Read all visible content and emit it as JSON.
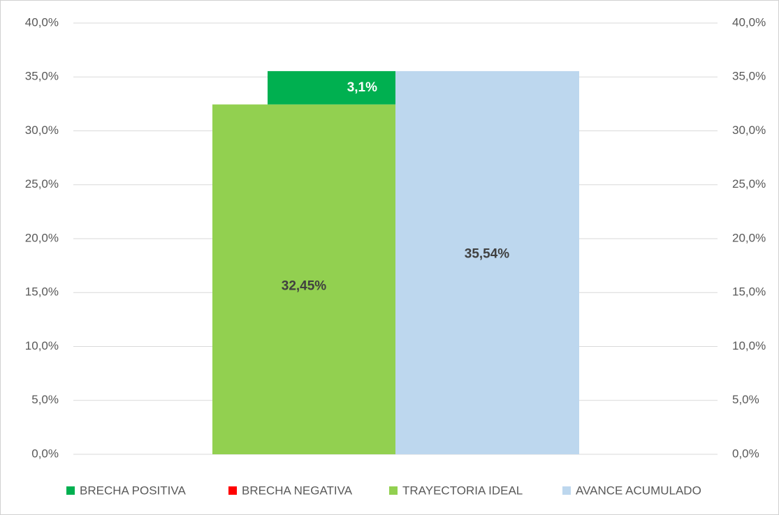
{
  "chart_data": {
    "type": "bar",
    "categories": [
      null
    ],
    "series": [
      {
        "name": "BRECHA POSITIVA",
        "color": "#00b050",
        "values": [
          3.09
        ],
        "value_labels": [
          "3,1%"
        ]
      },
      {
        "name": "BRECHA NEGATIVA",
        "color": "#ff0000",
        "values": [
          0
        ]
      },
      {
        "name": "TRAYECTORIA IDEAL",
        "color": "#92d050",
        "values": [
          32.45
        ],
        "value_labels": [
          "32,45%"
        ]
      },
      {
        "name": "AVANCE ACUMULADO",
        "color": "#bdd7ee",
        "values": [
          35.54
        ],
        "value_labels": [
          "35,54%"
        ],
        "axis": "y2"
      }
    ],
    "ylim": [
      0,
      40
    ],
    "yticks": [
      {
        "value": 0,
        "label": "0,0%"
      },
      {
        "value": 5,
        "label": "5,0%"
      },
      {
        "value": 10,
        "label": "10,0%"
      },
      {
        "value": 15,
        "label": "15,0%"
      },
      {
        "value": 20,
        "label": "20,0%"
      },
      {
        "value": 25,
        "label": "25,0%"
      },
      {
        "value": 30,
        "label": "30,0%"
      },
      {
        "value": 35,
        "label": "35,0%"
      },
      {
        "value": 40,
        "label": "40,0%"
      }
    ],
    "y2lim": [
      0,
      40
    ],
    "y2ticks": [
      {
        "value": 0,
        "label": "0,0%"
      },
      {
        "value": 5,
        "label": "5,0%"
      },
      {
        "value": 10,
        "label": "10,0%"
      },
      {
        "value": 15,
        "label": "15,0%"
      },
      {
        "value": 20,
        "label": "20,0%"
      },
      {
        "value": 25,
        "label": "25,0%"
      },
      {
        "value": 30,
        "label": "30,0%"
      },
      {
        "value": 35,
        "label": "35,0%"
      },
      {
        "value": 40,
        "label": "40,0%"
      }
    ],
    "grid": true,
    "legend": "bottom"
  }
}
